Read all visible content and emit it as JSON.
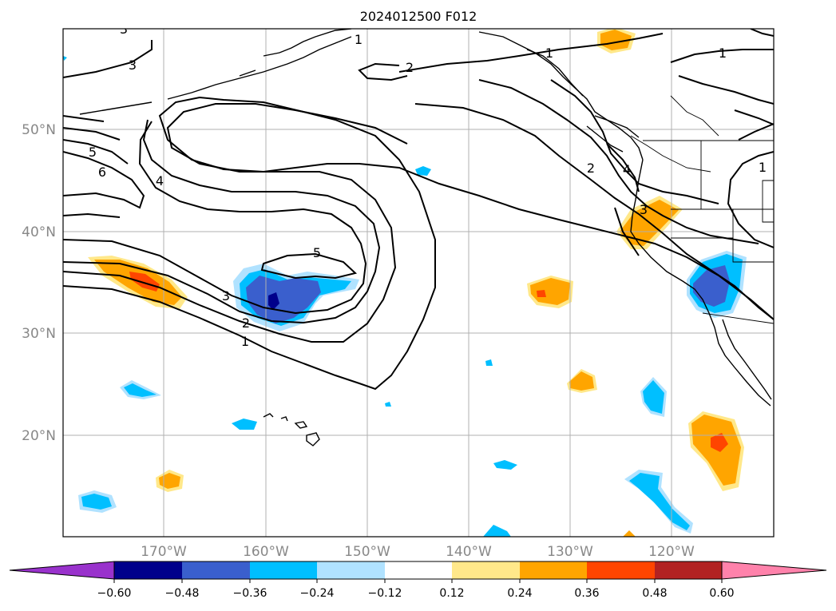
{
  "title": "2024012500 F012",
  "lat_labels": [
    "50°N",
    "40°N",
    "30°N",
    "20°N"
  ],
  "lon_labels": [
    "170°W",
    "160°W",
    "150°W",
    "140°W",
    "130°W",
    "120°W"
  ],
  "colorbar": {
    "ticks": [
      "−0.60",
      "−0.48",
      "−0.36",
      "−0.24",
      "−0.12",
      "0.12",
      "0.24",
      "0.36",
      "0.48",
      "0.60"
    ],
    "colors": [
      "#9932cc",
      "#00008b",
      "#3a5fcd",
      "#00bfff",
      "#b0e2ff",
      "#ffffff",
      "#ffe88a",
      "#ffa500",
      "#ff4500",
      "#b22222",
      "#ff82ab"
    ]
  },
  "contour_labels": [
    "1",
    "1",
    "1",
    "1",
    "1",
    "2",
    "2",
    "2",
    "3",
    "3",
    "3",
    "3",
    "4",
    "4",
    "5",
    "5",
    "6"
  ]
}
